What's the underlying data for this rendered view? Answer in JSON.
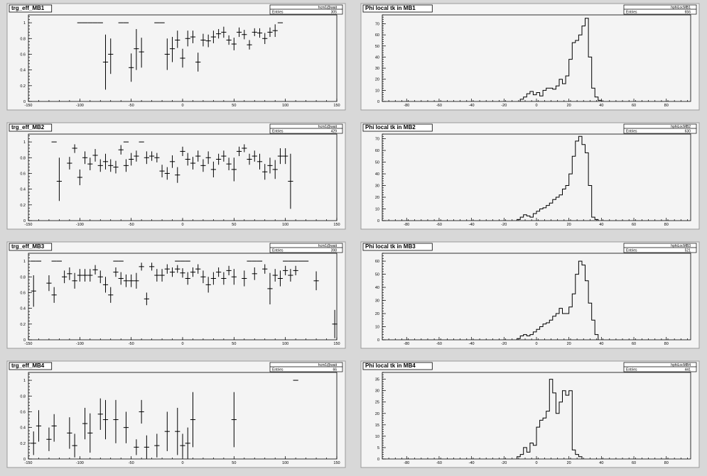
{
  "chart_data": [
    {
      "type": "scatter",
      "title": "trg_eff_MB1",
      "stats_name": "hcm1@wait",
      "entries_label": "Entries",
      "entries": "305",
      "xlim": [
        -150,
        150
      ],
      "ylim": [
        0,
        1.1
      ],
      "xticks": [
        -150,
        -100,
        -50,
        0,
        50,
        100,
        150
      ],
      "yticks": [
        0,
        0.2,
        0.4,
        0.6,
        0.8,
        1
      ],
      "points": [
        [
          -100,
          1,
          0,
          0
        ],
        [
          -95,
          1,
          0,
          0
        ],
        [
          -90,
          1,
          0,
          0
        ],
        [
          -85,
          1,
          0,
          0
        ],
        [
          -80,
          1,
          0,
          0
        ],
        [
          -60,
          1,
          0,
          0
        ],
        [
          -55,
          1,
          0,
          0
        ],
        [
          -25,
          1,
          0,
          0
        ],
        [
          -20,
          1,
          0,
          0
        ],
        [
          -75,
          0.5,
          0.35,
          0.35
        ],
        [
          -70,
          0.6,
          0.25,
          0.2
        ],
        [
          -50,
          0.43,
          0.18,
          0.18
        ],
        [
          -45,
          0.67,
          0.27,
          0.25
        ],
        [
          -40,
          0.63,
          0.2,
          0.18
        ],
        [
          -15,
          0.6,
          0.2,
          0.2
        ],
        [
          -10,
          0.67,
          0.17,
          0.15
        ],
        [
          -5,
          0.78,
          0.1,
          0.12
        ],
        [
          0,
          0.55,
          0.12,
          0.12
        ],
        [
          5,
          0.8,
          0.1,
          0.1
        ],
        [
          10,
          0.82,
          0.08,
          0.08
        ],
        [
          15,
          0.5,
          0.12,
          0.12
        ],
        [
          20,
          0.78,
          0.08,
          0.08
        ],
        [
          25,
          0.77,
          0.08,
          0.08
        ],
        [
          30,
          0.82,
          0.08,
          0.08
        ],
        [
          35,
          0.86,
          0.06,
          0.06
        ],
        [
          40,
          0.88,
          0.07,
          0.07
        ],
        [
          45,
          0.78,
          0.06,
          0.06
        ],
        [
          50,
          0.73,
          0.08,
          0.08
        ],
        [
          55,
          0.88,
          0.06,
          0.06
        ],
        [
          60,
          0.85,
          0.06,
          0.06
        ],
        [
          65,
          0.72,
          0.06,
          0.06
        ],
        [
          70,
          0.88,
          0.05,
          0.05
        ],
        [
          75,
          0.87,
          0.06,
          0.06
        ],
        [
          80,
          0.8,
          0.07,
          0.07
        ],
        [
          85,
          0.88,
          0.06,
          0.06
        ],
        [
          90,
          0.9,
          0.08,
          0.08
        ],
        [
          95,
          1,
          0,
          0
        ]
      ]
    },
    {
      "type": "histogram",
      "title": "Phi local tk in MB1",
      "stats_name": "hphiLocMB1",
      "entries_label": "Entries",
      "entries": "656",
      "xlim": [
        -95,
        95
      ],
      "ylim": [
        0,
        78
      ],
      "xticks": [
        -80,
        -60,
        -40,
        -20,
        0,
        20,
        40,
        60,
        80
      ],
      "yticks": [
        0,
        10,
        20,
        30,
        40,
        50,
        60,
        70
      ],
      "bin_start": -10,
      "bin_width": 2,
      "counts": [
        2,
        4,
        7,
        9,
        6,
        8,
        5,
        10,
        12,
        12,
        11,
        14,
        20,
        16,
        23,
        38,
        53,
        55,
        60,
        68,
        75,
        40,
        12,
        4,
        1
      ]
    },
    {
      "type": "scatter",
      "title": "trg_eff_MB2",
      "stats_name": "hcm1@wait",
      "entries_label": "Entries",
      "entries": "429",
      "xlim": [
        -150,
        150
      ],
      "ylim": [
        0,
        1.1
      ],
      "xticks": [
        -150,
        -100,
        -50,
        0,
        50,
        100,
        150
      ],
      "yticks": [
        0,
        0.2,
        0.4,
        0.6,
        0.8,
        1
      ],
      "points": [
        [
          -125,
          1,
          0,
          0
        ],
        [
          -55,
          1,
          0,
          0
        ],
        [
          -40,
          1,
          0,
          0
        ],
        [
          -120,
          0.5,
          0.25,
          0.3
        ],
        [
          -110,
          0.73,
          0.08,
          0.08
        ],
        [
          -105,
          0.92,
          0.06,
          0.05
        ],
        [
          -100,
          0.55,
          0.1,
          0.1
        ],
        [
          -95,
          0.8,
          0.08,
          0.08
        ],
        [
          -90,
          0.72,
          0.08,
          0.08
        ],
        [
          -85,
          0.83,
          0.08,
          0.08
        ],
        [
          -80,
          0.7,
          0.08,
          0.08
        ],
        [
          -75,
          0.75,
          0.1,
          0.1
        ],
        [
          -70,
          0.7,
          0.08,
          0.08
        ],
        [
          -65,
          0.68,
          0.08,
          0.08
        ],
        [
          -60,
          0.9,
          0.06,
          0.06
        ],
        [
          -55,
          0.7,
          0.08,
          0.08
        ],
        [
          -50,
          0.78,
          0.08,
          0.08
        ],
        [
          -45,
          0.82,
          0.07,
          0.07
        ],
        [
          -35,
          0.8,
          0.08,
          0.08
        ],
        [
          -30,
          0.82,
          0.06,
          0.06
        ],
        [
          -25,
          0.8,
          0.06,
          0.06
        ],
        [
          -20,
          0.63,
          0.08,
          0.08
        ],
        [
          -15,
          0.6,
          0.08,
          0.08
        ],
        [
          -10,
          0.75,
          0.08,
          0.08
        ],
        [
          -5,
          0.58,
          0.1,
          0.1
        ],
        [
          0,
          0.88,
          0.06,
          0.06
        ],
        [
          5,
          0.78,
          0.08,
          0.08
        ],
        [
          10,
          0.73,
          0.08,
          0.08
        ],
        [
          15,
          0.82,
          0.07,
          0.07
        ],
        [
          20,
          0.7,
          0.08,
          0.08
        ],
        [
          25,
          0.8,
          0.08,
          0.08
        ],
        [
          30,
          0.65,
          0.1,
          0.1
        ],
        [
          35,
          0.78,
          0.07,
          0.07
        ],
        [
          40,
          0.82,
          0.07,
          0.07
        ],
        [
          45,
          0.72,
          0.08,
          0.08
        ],
        [
          50,
          0.65,
          0.15,
          0.15
        ],
        [
          55,
          0.88,
          0.06,
          0.06
        ],
        [
          60,
          0.92,
          0.05,
          0.05
        ],
        [
          65,
          0.78,
          0.07,
          0.07
        ],
        [
          70,
          0.82,
          0.07,
          0.07
        ],
        [
          75,
          0.75,
          0.1,
          0.1
        ],
        [
          80,
          0.62,
          0.1,
          0.1
        ],
        [
          85,
          0.7,
          0.1,
          0.1
        ],
        [
          90,
          0.65,
          0.12,
          0.12
        ],
        [
          95,
          0.82,
          0.1,
          0.1
        ],
        [
          100,
          0.82,
          0.1,
          0.1
        ],
        [
          105,
          0.5,
          0.35,
          0.35
        ]
      ]
    },
    {
      "type": "histogram",
      "title": "Phi local tk in MB2",
      "stats_name": "hphiLocMB2",
      "entries_label": "Entries",
      "entries": "630",
      "xlim": [
        -95,
        95
      ],
      "ylim": [
        0,
        74
      ],
      "xticks": [
        -80,
        -60,
        -40,
        -20,
        0,
        20,
        40,
        60,
        80
      ],
      "yticks": [
        0,
        10,
        20,
        30,
        40,
        50,
        60,
        70
      ],
      "bin_start": -12,
      "bin_width": 2,
      "counts": [
        1,
        3,
        5,
        4,
        3,
        6,
        8,
        10,
        11,
        13,
        15,
        18,
        20,
        22,
        27,
        30,
        40,
        55,
        68,
        72,
        65,
        58,
        30,
        3,
        1
      ]
    },
    {
      "type": "scatter",
      "title": "trg_eff_MB3",
      "stats_name": "hcm1@wait",
      "entries_label": "Entries",
      "entries": "398",
      "xlim": [
        -150,
        150
      ],
      "ylim": [
        0,
        1.1
      ],
      "xticks": [
        -150,
        -100,
        -50,
        0,
        50,
        100,
        150
      ],
      "yticks": [
        0,
        0.2,
        0.4,
        0.6,
        0.8,
        1
      ],
      "points": [
        [
          -145,
          1,
          0,
          0
        ],
        [
          -140,
          1,
          0,
          0
        ],
        [
          -125,
          1,
          0,
          0
        ],
        [
          -120,
          1,
          0,
          0
        ],
        [
          -65,
          1,
          0,
          0
        ],
        [
          -60,
          1,
          0,
          0
        ],
        [
          -5,
          1,
          0,
          0
        ],
        [
          0,
          1,
          0,
          0
        ],
        [
          5,
          1,
          0,
          0
        ],
        [
          65,
          1,
          0,
          0
        ],
        [
          70,
          1,
          0,
          0
        ],
        [
          75,
          1,
          0,
          0
        ],
        [
          100,
          1,
          0,
          0
        ],
        [
          105,
          1,
          0,
          0
        ],
        [
          110,
          1,
          0,
          0
        ],
        [
          115,
          1,
          0,
          0
        ],
        [
          120,
          1,
          0,
          0
        ],
        [
          -145,
          0.62,
          0.2,
          0.2
        ],
        [
          -130,
          0.72,
          0.1,
          0.1
        ],
        [
          -125,
          0.57,
          0.1,
          0.1
        ],
        [
          -115,
          0.8,
          0.08,
          0.08
        ],
        [
          -110,
          0.84,
          0.08,
          0.08
        ],
        [
          -105,
          0.75,
          0.1,
          0.1
        ],
        [
          -100,
          0.82,
          0.08,
          0.08
        ],
        [
          -95,
          0.82,
          0.08,
          0.08
        ],
        [
          -90,
          0.82,
          0.08,
          0.08
        ],
        [
          -85,
          0.89,
          0.06,
          0.06
        ],
        [
          -80,
          0.8,
          0.08,
          0.08
        ],
        [
          -75,
          0.7,
          0.1,
          0.1
        ],
        [
          -70,
          0.57,
          0.1,
          0.1
        ],
        [
          -65,
          0.86,
          0.06,
          0.06
        ],
        [
          -60,
          0.78,
          0.08,
          0.08
        ],
        [
          -55,
          0.75,
          0.08,
          0.08
        ],
        [
          -50,
          0.75,
          0.08,
          0.08
        ],
        [
          -45,
          0.75,
          0.1,
          0.1
        ],
        [
          -40,
          0.93,
          0.05,
          0.05
        ],
        [
          -35,
          0.52,
          0.08,
          0.08
        ],
        [
          -30,
          0.93,
          0.05,
          0.05
        ],
        [
          -25,
          0.82,
          0.08,
          0.08
        ],
        [
          -20,
          0.82,
          0.08,
          0.08
        ],
        [
          -15,
          0.9,
          0.06,
          0.06
        ],
        [
          -10,
          0.86,
          0.06,
          0.06
        ],
        [
          -5,
          0.9,
          0.05,
          0.05
        ],
        [
          0,
          0.85,
          0.06,
          0.06
        ],
        [
          5,
          0.78,
          0.08,
          0.08
        ],
        [
          10,
          0.86,
          0.06,
          0.06
        ],
        [
          15,
          0.9,
          0.06,
          0.06
        ],
        [
          20,
          0.8,
          0.08,
          0.08
        ],
        [
          25,
          0.7,
          0.1,
          0.1
        ],
        [
          30,
          0.78,
          0.08,
          0.08
        ],
        [
          35,
          0.86,
          0.06,
          0.06
        ],
        [
          40,
          0.78,
          0.08,
          0.08
        ],
        [
          45,
          0.88,
          0.06,
          0.06
        ],
        [
          50,
          0.8,
          0.1,
          0.1
        ],
        [
          60,
          0.78,
          0.1,
          0.1
        ],
        [
          70,
          0.84,
          0.08,
          0.08
        ],
        [
          80,
          0.9,
          0.06,
          0.06
        ],
        [
          85,
          0.65,
          0.2,
          0.2
        ],
        [
          90,
          0.82,
          0.08,
          0.08
        ],
        [
          95,
          0.78,
          0.1,
          0.1
        ],
        [
          100,
          0.88,
          0.06,
          0.06
        ],
        [
          105,
          0.82,
          0.08,
          0.08
        ],
        [
          110,
          0.88,
          0.06,
          0.06
        ],
        [
          130,
          0.75,
          0.12,
          0.12
        ],
        [
          148,
          0.2,
          0.18,
          0.18
        ]
      ]
    },
    {
      "type": "histogram",
      "title": "Phi local tk in MB3",
      "stats_name": "hphiLocMB3",
      "entries_label": "Entries",
      "entries": "521",
      "xlim": [
        -95,
        95
      ],
      "ylim": [
        0,
        66
      ],
      "xticks": [
        -80,
        -60,
        -40,
        -20,
        0,
        20,
        40,
        60,
        80
      ],
      "yticks": [
        0,
        10,
        20,
        30,
        40,
        50,
        60
      ],
      "bin_start": -12,
      "bin_width": 2,
      "counts": [
        1,
        3,
        4,
        3,
        4,
        6,
        8,
        10,
        12,
        13,
        15,
        18,
        20,
        24,
        20,
        20,
        25,
        35,
        50,
        60,
        57,
        45,
        28,
        15,
        4
      ]
    },
    {
      "type": "scatter",
      "title": "trg_eff_MB4",
      "stats_name": "hcm1@wait",
      "entries_label": "Entries",
      "entries": "66",
      "xlim": [
        -150,
        150
      ],
      "ylim": [
        0,
        1.1
      ],
      "xticks": [
        -150,
        -100,
        -50,
        0,
        50,
        100,
        150
      ],
      "yticks": [
        0,
        0.2,
        0.4,
        0.6,
        0.8,
        1
      ],
      "points": [
        [
          -145,
          0.2,
          0.15,
          0.15
        ],
        [
          -140,
          0.42,
          0.2,
          0.2
        ],
        [
          -130,
          0.25,
          0.15,
          0.15
        ],
        [
          -125,
          0.42,
          0.2,
          0.15
        ],
        [
          -110,
          0.33,
          0.2,
          0.2
        ],
        [
          -105,
          0.17,
          0.15,
          0.15
        ],
        [
          -95,
          0.45,
          0.2,
          0.2
        ],
        [
          -90,
          0.33,
          0.25,
          0.25
        ],
        [
          -80,
          0.57,
          0.2,
          0.2
        ],
        [
          -75,
          0.5,
          0.25,
          0.25
        ],
        [
          -65,
          0.5,
          0.3,
          0.25
        ],
        [
          -55,
          0.4,
          0.2,
          0.2
        ],
        [
          -45,
          0.15,
          0.1,
          0.1
        ],
        [
          -40,
          0.6,
          0.15,
          0.15
        ],
        [
          -35,
          0.15,
          0.15,
          0.15
        ],
        [
          -25,
          0.17,
          0.15,
          0.15
        ],
        [
          -15,
          0.35,
          0.25,
          0.25
        ],
        [
          -5,
          0.35,
          0.3,
          0.3
        ],
        [
          0,
          0.17,
          0.15,
          0.15
        ],
        [
          5,
          0.2,
          0.2,
          0.2
        ],
        [
          10,
          0.5,
          0.35,
          0.35
        ],
        [
          50,
          0.5,
          0.35,
          0.35
        ],
        [
          110,
          1,
          0,
          0
        ]
      ]
    },
    {
      "type": "histogram",
      "title": "Phi local tk in MB4",
      "stats_name": "hphiLocMB4",
      "entries_label": "Entries",
      "entries": "441",
      "xlim": [
        -95,
        95
      ],
      "ylim": [
        0,
        38
      ],
      "xticks": [
        -80,
        -60,
        -40,
        -20,
        0,
        20,
        40,
        60,
        80
      ],
      "yticks": [
        0,
        5,
        10,
        15,
        20,
        25,
        30,
        35
      ],
      "bin_start": -12,
      "bin_width": 2,
      "counts": [
        1,
        2,
        5,
        3,
        7,
        6,
        14,
        17,
        18,
        21,
        35,
        29,
        20,
        25,
        30,
        28,
        30,
        4,
        2,
        1
      ]
    }
  ]
}
